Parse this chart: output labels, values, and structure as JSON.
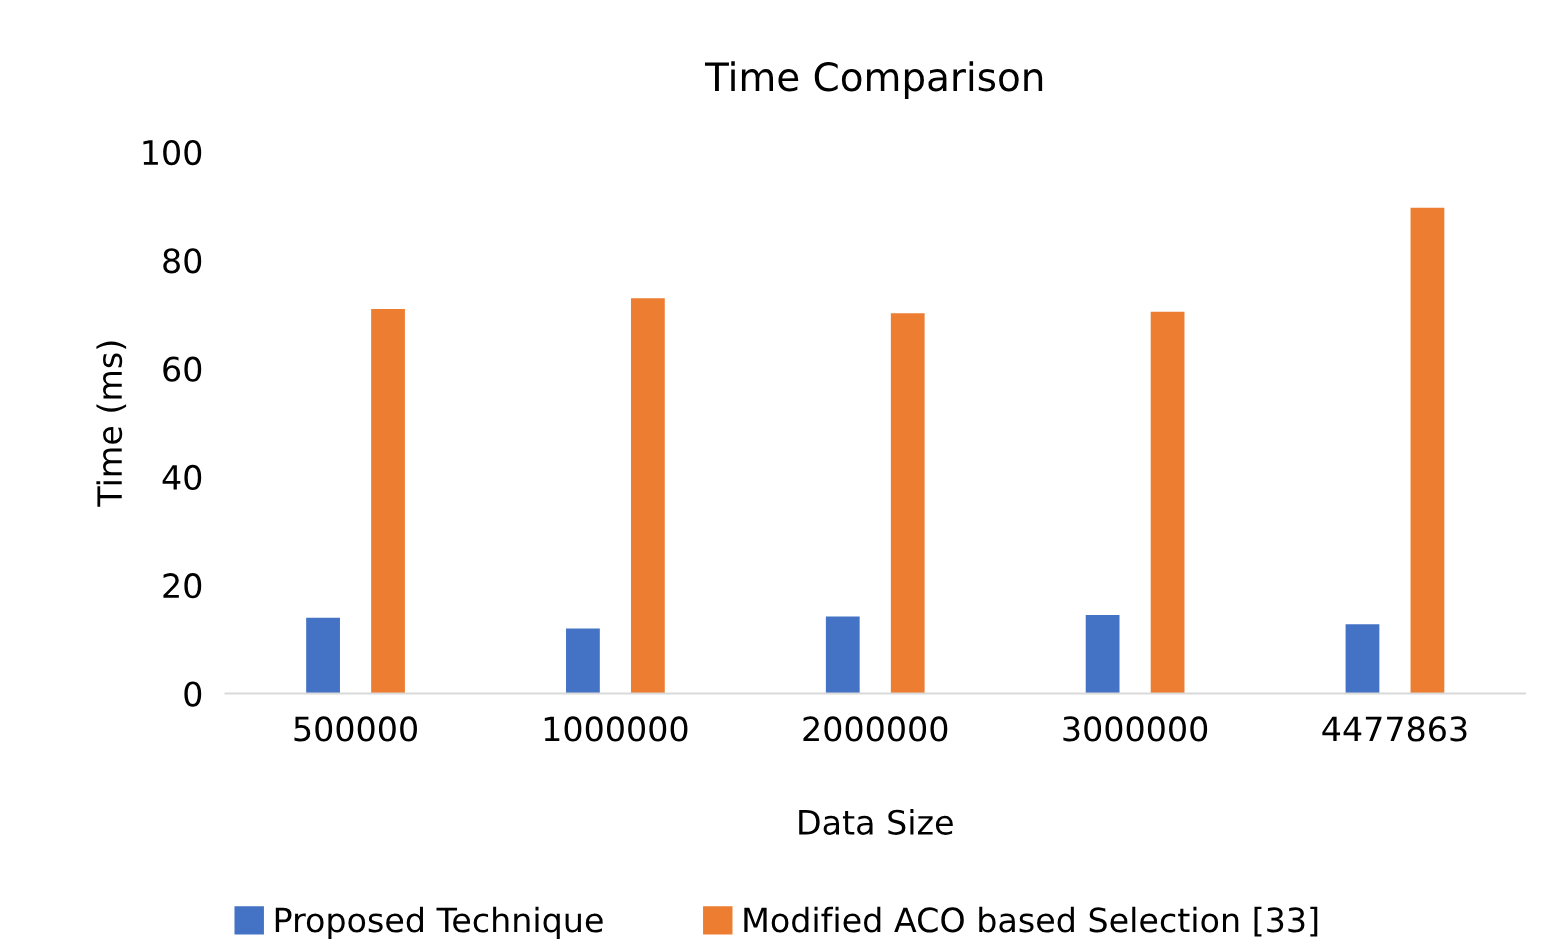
{
  "chart_data": {
    "type": "bar",
    "title": "Time Comparison",
    "xlabel": "Data Size",
    "ylabel": "Time (ms)",
    "categories": [
      "500000",
      "1000000",
      "2000000",
      "3000000",
      "4477863"
    ],
    "series": [
      {
        "name": "Proposed Technique",
        "color": "#4472c4",
        "values": [
          14,
          12,
          14.2,
          14.5,
          12.8
        ]
      },
      {
        "name": "Modified ACO based Selection [33]",
        "color": "#ed7d31",
        "values": [
          71,
          73,
          70.2,
          70.5,
          89.7
        ]
      }
    ],
    "ylim": [
      0,
      100
    ],
    "yticks": [
      0,
      20,
      40,
      60,
      80,
      100
    ],
    "grid": false,
    "legend": "bottom"
  }
}
